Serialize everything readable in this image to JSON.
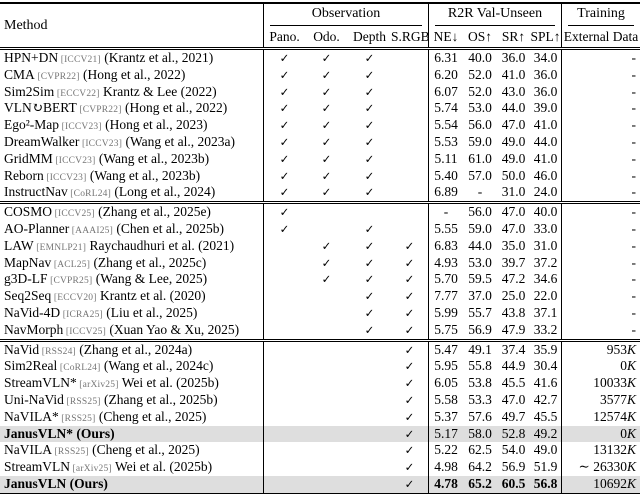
{
  "colors": {
    "highlight_row": "#dedede",
    "venue_tag": "#757575",
    "rule": "#000000"
  },
  "table": {
    "check_glyph": "✓",
    "header": {
      "method": "Method",
      "groups": [
        {
          "label": "Observation",
          "cols": [
            "Pano.",
            "Odo.",
            "Depth",
            "S.RGB"
          ]
        },
        {
          "label": "R2R Val-Unseen",
          "cols": [
            "NE↓",
            "OS↑",
            "SR↑",
            "SPL↑"
          ]
        },
        {
          "label": "Training",
          "cols": [
            "External Data"
          ]
        }
      ]
    },
    "groups": [
      {
        "rows": [
          {
            "name": "HPN+DN",
            "tag": "[ICCV21]",
            "cite": "(Krantz et al., 2021)",
            "pano": true,
            "odo": true,
            "depth": true,
            "srgb": false,
            "ne": "6.31",
            "os": "40.0",
            "sr": "36.0",
            "spl": "34.0",
            "ext": "-"
          },
          {
            "name": "CMA",
            "tag": "[CVPR22]",
            "cite": "(Hong et al., 2022)",
            "pano": true,
            "odo": true,
            "depth": true,
            "srgb": false,
            "ne": "6.20",
            "os": "52.0",
            "sr": "41.0",
            "spl": "36.0",
            "ext": "-"
          },
          {
            "name": "Sim2Sim",
            "tag": "[ECCV22]",
            "cite": "Krantz & Lee (2022)",
            "pano": true,
            "odo": true,
            "depth": true,
            "srgb": false,
            "ne": "6.07",
            "os": "52.0",
            "sr": "43.0",
            "spl": "36.0",
            "ext": "-"
          },
          {
            "name": "VLN↻BERT",
            "tag": "[CVPR22]",
            "cite": "(Hong et al., 2022)",
            "pano": true,
            "odo": true,
            "depth": true,
            "srgb": false,
            "ne": "5.74",
            "os": "53.0",
            "sr": "44.0",
            "spl": "39.0",
            "ext": "-"
          },
          {
            "name": "Ego²-Map",
            "tag": "[ICCV23]",
            "cite": "(Hong et al., 2023)",
            "pano": true,
            "odo": true,
            "depth": true,
            "srgb": false,
            "ne": "5.54",
            "os": "56.0",
            "sr": "47.0",
            "spl": "41.0",
            "ext": "-"
          },
          {
            "name": "DreamWalker",
            "tag": "[ICCV23]",
            "cite": "(Wang et al., 2023a)",
            "pano": true,
            "odo": true,
            "depth": true,
            "srgb": false,
            "ne": "5.53",
            "os": "59.0",
            "sr": "49.0",
            "spl": "44.0",
            "ext": "-"
          },
          {
            "name": "GridMM",
            "tag": "[ICCV23]",
            "cite": "(Wang et al., 2023b)",
            "pano": true,
            "odo": true,
            "depth": true,
            "srgb": false,
            "ne": "5.11",
            "os": "61.0",
            "sr": "49.0",
            "spl": "41.0",
            "ext": "-"
          },
          {
            "name": "Reborn",
            "tag": "[ICCV23]",
            "cite": "(Wang et al., 2023b)",
            "pano": true,
            "odo": true,
            "depth": true,
            "srgb": false,
            "ne": "5.40",
            "os": "57.0",
            "sr": "50.0",
            "spl": "46.0",
            "ext": "-"
          },
          {
            "name": "InstructNav",
            "tag": "[CoRL24]",
            "cite": "(Long et al., 2024)",
            "pano": true,
            "odo": true,
            "depth": true,
            "srgb": false,
            "ne": "6.89",
            "os": "-",
            "sr": "31.0",
            "spl": "24.0",
            "ext": "-"
          }
        ]
      },
      {
        "rows": [
          {
            "name": "COSMO",
            "tag": "[ICCV25]",
            "cite": "(Zhang et al., 2025e)",
            "pano": true,
            "odo": false,
            "depth": false,
            "srgb": false,
            "ne": "-",
            "os": "56.0",
            "sr": "47.0",
            "spl": "40.0",
            "ext": "-"
          },
          {
            "name": "AO-Planner",
            "tag": "[AAAI25]",
            "cite": "(Chen et al., 2025b)",
            "pano": true,
            "odo": false,
            "depth": true,
            "srgb": false,
            "ne": "5.55",
            "os": "59.0",
            "sr": "47.0",
            "spl": "33.0",
            "ext": "-"
          },
          {
            "name": "LAW",
            "tag": "[EMNLP21]",
            "cite": "Raychaudhuri et al. (2021)",
            "pano": false,
            "odo": true,
            "depth": true,
            "srgb": true,
            "ne": "6.83",
            "os": "44.0",
            "sr": "35.0",
            "spl": "31.0",
            "ext": "-"
          },
          {
            "name": "MapNav",
            "tag": "[ACL25]",
            "cite": "(Zhang et al., 2025c)",
            "pano": false,
            "odo": true,
            "depth": true,
            "srgb": true,
            "ne": "4.93",
            "os": "53.0",
            "sr": "39.7",
            "spl": "37.2",
            "ext": "-"
          },
          {
            "name": "g3D-LF",
            "tag": "[CVPR25]",
            "cite": "(Wang & Lee, 2025)",
            "pano": false,
            "odo": true,
            "depth": true,
            "srgb": true,
            "ne": "5.70",
            "os": "59.5",
            "sr": "47.2",
            "spl": "34.6",
            "ext": "-"
          },
          {
            "name": "Seq2Seq",
            "tag": "[ECCV20]",
            "cite": "Krantz et al. (2020)",
            "pano": false,
            "odo": false,
            "depth": true,
            "srgb": true,
            "ne": "7.77",
            "os": "37.0",
            "sr": "25.0",
            "spl": "22.0",
            "ext": "-"
          },
          {
            "name": "NaVid-4D",
            "tag": "[ICRA25]",
            "cite": "(Liu et al., 2025)",
            "pano": false,
            "odo": false,
            "depth": true,
            "srgb": true,
            "ne": "5.99",
            "os": "55.7",
            "sr": "43.8",
            "spl": "37.1",
            "ext": "-"
          },
          {
            "name": "NavMorph",
            "tag": "[ICCV25]",
            "cite": "(Xuan Yao & Xu, 2025)",
            "pano": false,
            "odo": false,
            "depth": true,
            "srgb": true,
            "ne": "5.75",
            "os": "56.9",
            "sr": "47.9",
            "spl": "33.2",
            "ext": "-"
          }
        ]
      },
      {
        "rows": [
          {
            "name": "NaVid",
            "tag": "[RSS24]",
            "cite": "(Zhang et al., 2024a)",
            "pano": false,
            "odo": false,
            "depth": false,
            "srgb": true,
            "ne": "5.47",
            "os": "49.1",
            "sr": "37.4",
            "spl": "35.9",
            "ext": "953K"
          },
          {
            "name": "Sim2Real",
            "tag": "[CoRL24]",
            "cite": "(Wang et al., 2024c)",
            "pano": false,
            "odo": false,
            "depth": false,
            "srgb": true,
            "ne": "5.95",
            "os": "55.8",
            "sr": "44.9",
            "spl": "30.4",
            "ext": "0K"
          },
          {
            "name": "StreamVLN*",
            "tag": "[arXiv25]",
            "cite": "Wei et al. (2025b)",
            "pano": false,
            "odo": false,
            "depth": false,
            "srgb": true,
            "ne": "6.05",
            "os": "53.8",
            "sr": "45.5",
            "spl": "41.6",
            "ext": "10033K"
          },
          {
            "name": "Uni-NaVid",
            "tag": "[RSS25]",
            "cite": "(Zhang et al., 2025b)",
            "pano": false,
            "odo": false,
            "depth": false,
            "srgb": true,
            "ne": "5.58",
            "os": "53.3",
            "sr": "47.0",
            "spl": "42.7",
            "ext": "3577K"
          },
          {
            "name": "NaVILA*",
            "tag": "[RSS25]",
            "cite": "(Cheng et al., 2025)",
            "pano": false,
            "odo": false,
            "depth": false,
            "srgb": true,
            "ne": "5.37",
            "os": "57.6",
            "sr": "49.7",
            "spl": "45.5",
            "ext": "12574K"
          },
          {
            "name": "JanusVLN* (Ours)",
            "tag": "",
            "cite": "",
            "bold": true,
            "highlight": true,
            "pano": false,
            "odo": false,
            "depth": false,
            "srgb": true,
            "ne": "5.17",
            "os": "58.0",
            "sr": "52.8",
            "spl": "49.2",
            "ext": "0K"
          },
          {
            "name": "NaVILA",
            "tag": "[RSS25]",
            "cite": "(Cheng et al., 2025)",
            "pano": false,
            "odo": false,
            "depth": false,
            "srgb": true,
            "ne": "5.22",
            "os": "62.5",
            "sr": "54.0",
            "spl": "49.0",
            "ext": "13132K"
          },
          {
            "name": "StreamVLN",
            "tag": "[arXiv25]",
            "cite": "Wei et al. (2025b)",
            "pano": false,
            "odo": false,
            "depth": false,
            "srgb": true,
            "ne": "4.98",
            "os": "64.2",
            "sr": "56.9",
            "spl": "51.9",
            "ext": "∼ 26330K"
          },
          {
            "name": "JanusVLN (Ours)",
            "tag": "",
            "cite": "",
            "bold": true,
            "highlight": true,
            "bold_metrics": true,
            "pano": false,
            "odo": false,
            "depth": false,
            "srgb": true,
            "ne": "4.78",
            "os": "65.2",
            "sr": "60.5",
            "spl": "56.8",
            "ext": "10692K"
          }
        ]
      }
    ]
  }
}
